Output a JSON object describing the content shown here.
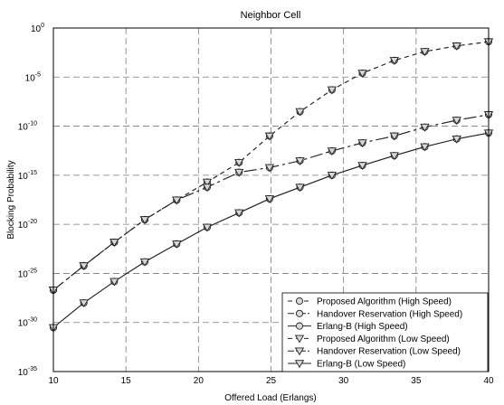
{
  "chart_data": {
    "type": "line",
    "title": "Neighbor Cell",
    "xlabel": "Offered Load (Erlangs)",
    "ylabel": "Blocking Probability",
    "xlim": [
      10,
      40
    ],
    "ylim_log10": [
      -35,
      0
    ],
    "y_scale": "log",
    "grid": true,
    "legend_position": "bottom-right",
    "x_ticks": [
      "10",
      "15",
      "20",
      "25",
      "30",
      "35",
      "40"
    ],
    "y_ticks": [
      {
        "base": "10",
        "exp": "0"
      },
      {
        "base": "10",
        "exp": "-5"
      },
      {
        "base": "10",
        "exp": "-10"
      },
      {
        "base": "10",
        "exp": "-15"
      },
      {
        "base": "10",
        "exp": "-20"
      },
      {
        "base": "10",
        "exp": "-25"
      },
      {
        "base": "10",
        "exp": "-30"
      },
      {
        "base": "10",
        "exp": "-35"
      }
    ],
    "series": [
      {
        "name": "Proposed Algorithm (High Speed)",
        "marker": "circle",
        "dash": "5 4",
        "x": [
          10,
          12.1,
          14.2,
          16.3,
          18.5,
          20.6,
          22.8,
          24.9,
          27.0,
          29.2,
          31.3,
          33.5,
          35.6,
          37.8,
          40
        ],
        "y": [
          2e-27,
          6e-25,
          1.5e-22,
          3e-20,
          3e-18,
          2e-16,
          2e-14,
          1e-11,
          3e-09,
          5e-07,
          2.5e-05,
          0.0005,
          0.004,
          0.015,
          0.04
        ]
      },
      {
        "name": "Handover Reservation (High Speed)",
        "marker": "circle",
        "dash": "14 4 3 4",
        "x": [
          10,
          12.1,
          14.2,
          16.3,
          18.5,
          20.6,
          22.8,
          24.9,
          27.0,
          29.2,
          31.3,
          33.5,
          35.6,
          37.8,
          40
        ],
        "y": [
          2e-27,
          6e-25,
          1.5e-22,
          3e-20,
          3e-18,
          6e-17,
          2e-15,
          6e-15,
          3e-14,
          3e-13,
          2e-12,
          1e-11,
          8e-11,
          4e-10,
          1.5e-09
        ]
      },
      {
        "name": "Erlang-B (High Speed)",
        "marker": "circle",
        "dash": "",
        "x": [
          10,
          12.1,
          14.2,
          16.3,
          18.5,
          20.6,
          22.8,
          24.9,
          27.0,
          29.2,
          31.3,
          33.5,
          35.6,
          37.8,
          40
        ],
        "y": [
          3e-31,
          1e-28,
          1.5e-26,
          1.5e-24,
          1e-22,
          5e-21,
          1.5e-19,
          4e-18,
          6e-17,
          1e-15,
          1e-14,
          1e-13,
          8e-13,
          5e-12,
          2e-11
        ]
      },
      {
        "name": "Proposed Algorithm (Low Speed)",
        "marker": "triangle",
        "dash": "5 4",
        "x": [
          10,
          12.1,
          14.2,
          16.3,
          18.5,
          20.6,
          22.8,
          24.9,
          27.0,
          29.2,
          31.3,
          33.5,
          35.6,
          37.8,
          40
        ],
        "y": [
          2e-27,
          6e-25,
          1.5e-22,
          3e-20,
          3e-18,
          2e-16,
          2e-14,
          1e-11,
          3e-09,
          5e-07,
          2.5e-05,
          0.0005,
          0.004,
          0.015,
          0.04
        ]
      },
      {
        "name": "Handover Reservation (Low Speed)",
        "marker": "triangle",
        "dash": "14 4 3 4",
        "x": [
          10,
          12.1,
          14.2,
          16.3,
          18.5,
          20.6,
          22.8,
          24.9,
          27.0,
          29.2,
          31.3,
          33.5,
          35.6,
          37.8,
          40
        ],
        "y": [
          2e-27,
          6e-25,
          1.5e-22,
          3e-20,
          3e-18,
          6e-17,
          2e-15,
          6e-15,
          3e-14,
          3e-13,
          2e-12,
          1e-11,
          8e-11,
          4e-10,
          1.5e-09
        ]
      },
      {
        "name": "Erlang-B (Low Speed)",
        "marker": "triangle",
        "dash": "",
        "x": [
          10,
          12.1,
          14.2,
          16.3,
          18.5,
          20.6,
          22.8,
          24.9,
          27.0,
          29.2,
          31.3,
          33.5,
          35.6,
          37.8,
          40
        ],
        "y": [
          3e-31,
          1e-28,
          1.5e-26,
          1.5e-24,
          1e-22,
          5e-21,
          1.5e-19,
          4e-18,
          6e-17,
          1e-15,
          1e-14,
          1e-13,
          8e-13,
          5e-12,
          2e-11
        ]
      }
    ]
  }
}
